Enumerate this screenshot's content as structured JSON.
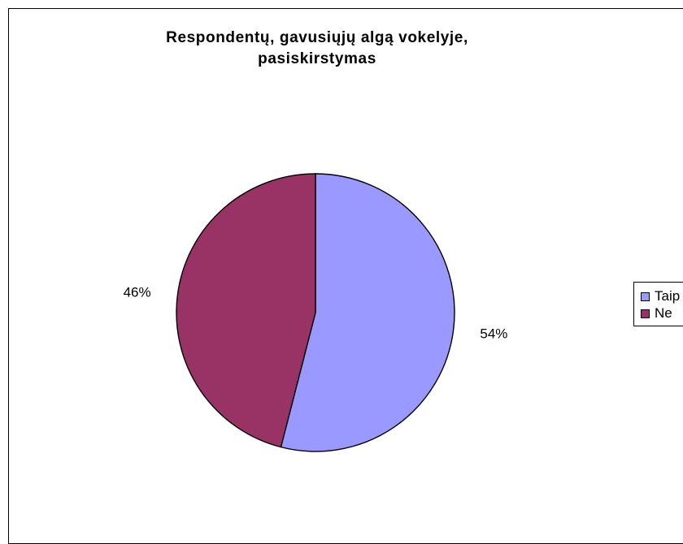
{
  "chart_data": {
    "type": "pie",
    "title_lines": [
      "Respondentų, gavusiųjų algą vokelyje,",
      "pasiskirstymas"
    ],
    "title": "Respondentų, gavusiųjų algą vokelyje, pasiskirstymas",
    "categories": [
      "Taip",
      "Ne"
    ],
    "values": [
      54,
      46
    ],
    "data_labels": [
      "54%",
      "46%"
    ],
    "colors": [
      "#9999ff",
      "#993366"
    ],
    "legend": {
      "placement": "right",
      "entries": [
        "Taip",
        "Ne"
      ]
    }
  }
}
